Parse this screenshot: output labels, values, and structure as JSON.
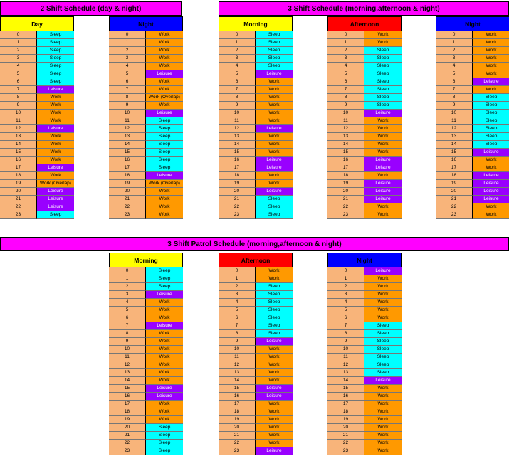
{
  "colors": {
    "Sleep": "#00ffff",
    "Work": "#ff9900",
    "Work (Overlap)": "#ff9900",
    "Leisure": "#9900ff",
    "banner": "#ff00ff",
    "hour": "#f8b47a"
  },
  "banners": [
    {
      "title": "2 Shift Schedule (day & night)"
    },
    {
      "title": "3 Shift Schedule (morning,afternoon & night)"
    },
    {
      "title": "3 Shift Patrol Schedule (morning,afternoon & night)"
    }
  ],
  "schedules": [
    {
      "title": "Day",
      "color": "#ffff00",
      "hours": [
        "0",
        "1",
        "2",
        "3",
        "4",
        "5",
        "6",
        "7",
        "8",
        "9",
        "10",
        "11",
        "12",
        "13",
        "14",
        "15",
        "16",
        "17",
        "18",
        "19",
        "20",
        "21",
        "22",
        "23"
      ],
      "activities": [
        "Sleep",
        "Sleep",
        "Sleep",
        "Sleep",
        "Sleep",
        "Sleep",
        "Sleep",
        "Leisure",
        "Work",
        "Work",
        "Work",
        "Work",
        "Leisure",
        "Work",
        "Work",
        "Work",
        "Work",
        "Leisure",
        "Work",
        "Work (Overlap)",
        "Leisure",
        "Leisure",
        "Leisure",
        "Sleep"
      ]
    },
    {
      "title": "Night",
      "color": "#0000ff",
      "hours": [
        "0",
        "1",
        "2",
        "3",
        "4",
        "5",
        "6",
        "7",
        "8",
        "9",
        "10",
        "11",
        "12",
        "13",
        "14",
        "15",
        "16",
        "17",
        "18",
        "19",
        "20",
        "21",
        "22",
        "23"
      ],
      "activities": [
        "Work",
        "Work",
        "Work",
        "Work",
        "Work",
        "Leisure",
        "Work",
        "Work",
        "Work (Overlap)",
        "Work",
        "Leisure",
        "Sleep",
        "Sleep",
        "Sleep",
        "Sleep",
        "Sleep",
        "Sleep",
        "Sleep",
        "Leisure",
        "Work (Overlap)",
        "Work",
        "Work",
        "Work",
        "Work"
      ]
    },
    {
      "title": "Morning",
      "color": "#ffff00",
      "hours": [
        "0",
        "1",
        "2",
        "3",
        "4",
        "5",
        "6",
        "7",
        "8",
        "9",
        "10",
        "11",
        "12",
        "13",
        "14",
        "15",
        "16",
        "17",
        "18",
        "19",
        "20",
        "21",
        "22",
        "23"
      ],
      "activities": [
        "Sleep",
        "Sleep",
        "Sleep",
        "Sleep",
        "Sleep",
        "Leisure",
        "Work",
        "Work",
        "Work",
        "Work",
        "Work",
        "Work",
        "Leisure",
        "Work",
        "Work",
        "Work",
        "Leisure",
        "Leisure",
        "Work",
        "Work",
        "Leisure",
        "Sleep",
        "Sleep",
        "Sleep"
      ]
    },
    {
      "title": "Afternoon",
      "color": "#ff0000",
      "hours": [
        "0",
        "1",
        "2",
        "3",
        "4",
        "5",
        "6",
        "7",
        "8",
        "9",
        "10",
        "11",
        "12",
        "13",
        "14",
        "15",
        "16",
        "17",
        "18",
        "19",
        "20",
        "21",
        "22",
        "23"
      ],
      "activities": [
        "Work",
        "Work",
        "Sleep",
        "Sleep",
        "Sleep",
        "Sleep",
        "Sleep",
        "Sleep",
        "Sleep",
        "Sleep",
        "Leisure",
        "Work",
        "Work",
        "Work",
        "Work",
        "Work",
        "Leisure",
        "Leisure",
        "Work",
        "Leisure",
        "Leisure",
        "Leisure",
        "Work",
        "Work"
      ]
    },
    {
      "title": "Night",
      "color": "#0000ff",
      "hours": [
        "0",
        "1",
        "2",
        "3",
        "4",
        "5",
        "6",
        "7",
        "8",
        "9",
        "10",
        "11",
        "12",
        "13",
        "14",
        "15",
        "16",
        "17",
        "18",
        "19",
        "20",
        "21",
        "22",
        "23"
      ],
      "activities": [
        "Work",
        "Work",
        "Work",
        "Work",
        "Work",
        "Work",
        "Leisure",
        "Work",
        "Sleep",
        "Sleep",
        "Sleep",
        "Sleep",
        "Sleep",
        "Sleep",
        "Sleep",
        "Leisure",
        "Work",
        "Work",
        "Leisure",
        "Leisure",
        "Leisure",
        "Leisure",
        "Work",
        "Work"
      ]
    },
    {
      "title": "Morning",
      "color": "#ffff00",
      "hours": [
        "0",
        "1",
        "2",
        "3",
        "4",
        "5",
        "6",
        "7",
        "8",
        "9",
        "10",
        "11",
        "12",
        "13",
        "14",
        "15",
        "16",
        "17",
        "18",
        "19",
        "20",
        "21",
        "22",
        "23"
      ],
      "activities": [
        "Sleep",
        "Sleep",
        "Sleep",
        "Leisure",
        "Work",
        "Work",
        "Work",
        "Leisure",
        "Work",
        "Work",
        "Work",
        "Work",
        "Work",
        "Work",
        "Work",
        "Leisure",
        "Leisure",
        "Work",
        "Work",
        "Work",
        "Sleep",
        "Sleep",
        "Sleep",
        "Sleep"
      ]
    },
    {
      "title": "Afternoon",
      "color": "#ff0000",
      "hours": [
        "0",
        "1",
        "2",
        "3",
        "4",
        "5",
        "6",
        "7",
        "8",
        "9",
        "10",
        "11",
        "12",
        "13",
        "14",
        "15",
        "16",
        "17",
        "18",
        "19",
        "20",
        "21",
        "22",
        "23"
      ],
      "activities": [
        "Work",
        "Work",
        "Sleep",
        "Sleep",
        "Sleep",
        "Sleep",
        "Sleep",
        "Sleep",
        "Sleep",
        "Leisure",
        "Work",
        "Work",
        "Work",
        "Work",
        "Work",
        "Leisure",
        "Leisure",
        "Work",
        "Work",
        "Work",
        "Work",
        "Work",
        "Work",
        "Leisure"
      ]
    },
    {
      "title": "Night",
      "color": "#0000ff",
      "hours": [
        "0",
        "1",
        "2",
        "3",
        "4",
        "5",
        "6",
        "7",
        "8",
        "9",
        "10",
        "11",
        "12",
        "13",
        "14",
        "15",
        "16",
        "17",
        "18",
        "19",
        "20",
        "21",
        "22",
        "23"
      ],
      "activities": [
        "Leisure",
        "Work",
        "Work",
        "Work",
        "Work",
        "Work",
        "Work",
        "Sleep",
        "Sleep",
        "Sleep",
        "Sleep",
        "Sleep",
        "Sleep",
        "Sleep",
        "Leisure",
        "Work",
        "Work",
        "Work",
        "Work",
        "Work",
        "Work",
        "Work",
        "Work",
        "Work"
      ]
    }
  ]
}
